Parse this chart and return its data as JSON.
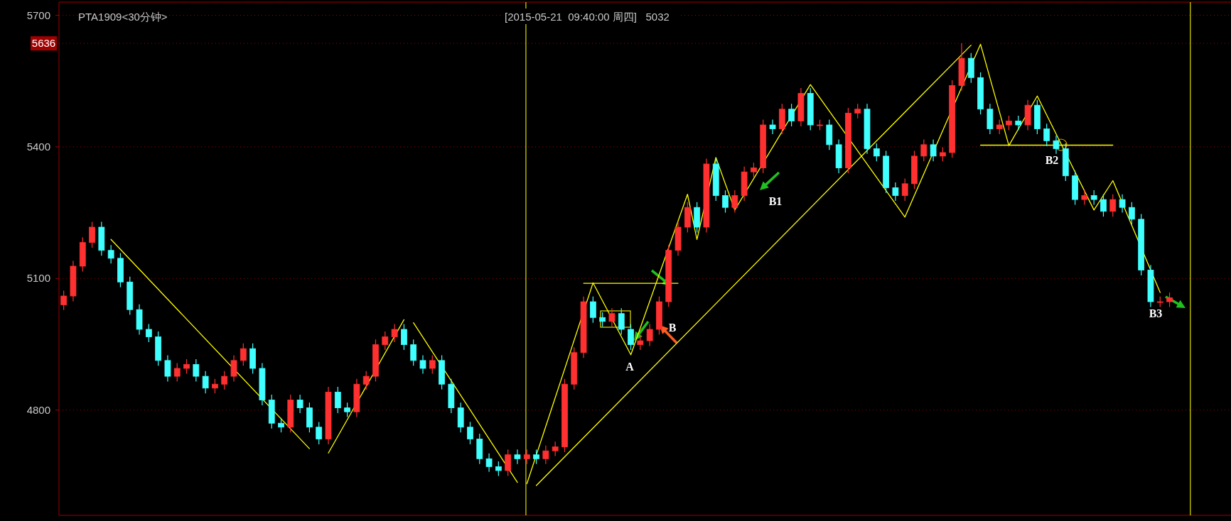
{
  "chart_data": {
    "type": "candlestick",
    "title": "PTA1909<30分钟>",
    "subtitle": "[2015-05-21  09:40:00 周四]   5032",
    "categories": [
      null,
      null,
      null,
      null,
      null,
      null,
      null,
      null,
      null,
      null,
      null,
      null,
      null,
      null,
      null,
      null,
      null,
      null,
      null,
      null,
      null,
      null,
      null,
      null,
      null,
      null,
      null,
      null,
      null,
      null,
      null,
      null,
      null,
      null,
      null,
      null,
      null,
      null,
      null,
      null,
      null,
      null,
      null,
      null,
      null,
      null,
      null,
      null,
      null,
      null,
      null,
      null,
      null,
      null,
      null,
      null,
      null,
      null,
      null,
      null,
      null,
      null,
      null,
      null,
      null,
      null,
      null,
      null,
      null,
      null,
      null,
      null,
      null,
      null,
      null,
      null,
      null,
      null,
      null,
      null,
      null,
      null,
      null,
      null,
      null,
      null,
      null,
      null,
      null,
      null,
      null,
      null,
      null,
      null,
      null,
      null,
      null,
      null,
      null,
      null,
      null,
      null,
      null,
      null,
      null,
      null,
      null,
      null,
      null,
      null,
      null,
      null,
      null,
      null,
      null,
      null,
      null,
      null
    ],
    "ohlc": [
      [
        5040,
        5072,
        5028,
        5060
      ],
      [
        5060,
        5140,
        5048,
        5128
      ],
      [
        5128,
        5194,
        5116,
        5182
      ],
      [
        5182,
        5229,
        5170,
        5217
      ],
      [
        5217,
        5229,
        5152,
        5164
      ],
      [
        5164,
        5176,
        5134,
        5146
      ],
      [
        5146,
        5158,
        5080,
        5092
      ],
      [
        5092,
        5104,
        5017,
        5029
      ],
      [
        5029,
        5041,
        4972,
        4984
      ],
      [
        4984,
        4996,
        4955,
        4967
      ],
      [
        4967,
        4979,
        4901,
        4913
      ],
      [
        4913,
        4925,
        4865,
        4877
      ],
      [
        4877,
        4907,
        4865,
        4895
      ],
      [
        4895,
        4916,
        4883,
        4904
      ],
      [
        4904,
        4916,
        4865,
        4877
      ],
      [
        4877,
        4889,
        4838,
        4850
      ],
      [
        4850,
        4871,
        4838,
        4859
      ],
      [
        4859,
        4889,
        4847,
        4877
      ],
      [
        4877,
        4925,
        4865,
        4913
      ],
      [
        4913,
        4952,
        4901,
        4940
      ],
      [
        4940,
        4952,
        4883,
        4895
      ],
      [
        4895,
        4907,
        4811,
        4823
      ],
      [
        4823,
        4835,
        4758,
        4770
      ],
      [
        4770,
        4782,
        4749,
        4761
      ],
      [
        4761,
        4835,
        4749,
        4823
      ],
      [
        4823,
        4835,
        4793,
        4805
      ],
      [
        4805,
        4817,
        4749,
        4761
      ],
      [
        4761,
        4773,
        4722,
        4734
      ],
      [
        4734,
        4853,
        4722,
        4841
      ],
      [
        4841,
        4853,
        4793,
        4805
      ],
      [
        4805,
        4817,
        4784,
        4796
      ],
      [
        4796,
        4871,
        4784,
        4859
      ],
      [
        4859,
        4889,
        4847,
        4877
      ],
      [
        4877,
        4961,
        4865,
        4949
      ],
      [
        4949,
        4979,
        4937,
        4967
      ],
      [
        4967,
        4996,
        4955,
        4984
      ],
      [
        4984,
        4996,
        4937,
        4949
      ],
      [
        4949,
        4961,
        4901,
        4913
      ],
      [
        4913,
        4925,
        4883,
        4895
      ],
      [
        4895,
        4925,
        4883,
        4913
      ],
      [
        4913,
        4925,
        4847,
        4859
      ],
      [
        4859,
        4871,
        4793,
        4805
      ],
      [
        4805,
        4817,
        4749,
        4761
      ],
      [
        4761,
        4773,
        4722,
        4734
      ],
      [
        4734,
        4746,
        4677,
        4689
      ],
      [
        4689,
        4701,
        4659,
        4671
      ],
      [
        4671,
        4683,
        4650,
        4662
      ],
      [
        4662,
        4710,
        4650,
        4698
      ],
      [
        4698,
        4710,
        4677,
        4689
      ],
      [
        4689,
        4710,
        4677,
        4698
      ],
      [
        4698,
        4710,
        4677,
        4689
      ],
      [
        4689,
        4719,
        4677,
        4707
      ],
      [
        4707,
        4728,
        4695,
        4716
      ],
      [
        4716,
        4871,
        4704,
        4859
      ],
      [
        4859,
        4943,
        4847,
        4931
      ],
      [
        4931,
        5059,
        4919,
        5047
      ],
      [
        5047,
        5059,
        4999,
        5011
      ],
      [
        5011,
        5023,
        4990,
        5002
      ],
      [
        5002,
        5032,
        4990,
        5020
      ],
      [
        5020,
        5032,
        4972,
        4984
      ],
      [
        4984,
        4996,
        4937,
        4949
      ],
      [
        4949,
        4970,
        4937,
        4958
      ],
      [
        4958,
        4996,
        4946,
        4984
      ],
      [
        4984,
        5059,
        4972,
        5047
      ],
      [
        5047,
        5176,
        5035,
        5164
      ],
      [
        5164,
        5229,
        5152,
        5217
      ],
      [
        5217,
        5274,
        5205,
        5262
      ],
      [
        5262,
        5274,
        5205,
        5217
      ],
      [
        5217,
        5373,
        5205,
        5361
      ],
      [
        5361,
        5373,
        5277,
        5289
      ],
      [
        5289,
        5301,
        5250,
        5262
      ],
      [
        5262,
        5301,
        5250,
        5289
      ],
      [
        5289,
        5355,
        5277,
        5343
      ],
      [
        5343,
        5364,
        5331,
        5352
      ],
      [
        5352,
        5462,
        5340,
        5450
      ],
      [
        5450,
        5462,
        5429,
        5441
      ],
      [
        5441,
        5498,
        5429,
        5486
      ],
      [
        5486,
        5498,
        5447,
        5459
      ],
      [
        5459,
        5534,
        5447,
        5522
      ],
      [
        5522,
        5534,
        5438,
        5450
      ],
      [
        5450,
        5462,
        5438,
        5450
      ],
      [
        5450,
        5462,
        5393,
        5405
      ],
      [
        5405,
        5417,
        5340,
        5352
      ],
      [
        5352,
        5489,
        5340,
        5477
      ],
      [
        5477,
        5498,
        5465,
        5486
      ],
      [
        5486,
        5498,
        5384,
        5396
      ],
      [
        5396,
        5408,
        5367,
        5379
      ],
      [
        5379,
        5391,
        5295,
        5307
      ],
      [
        5307,
        5319,
        5277,
        5289
      ],
      [
        5289,
        5328,
        5277,
        5316
      ],
      [
        5316,
        5391,
        5304,
        5379
      ],
      [
        5379,
        5417,
        5367,
        5405
      ],
      [
        5405,
        5417,
        5367,
        5379
      ],
      [
        5379,
        5399,
        5367,
        5387
      ],
      [
        5387,
        5552,
        5375,
        5540
      ],
      [
        5540,
        5636,
        5528,
        5602
      ],
      [
        5602,
        5614,
        5546,
        5558
      ],
      [
        5558,
        5570,
        5474,
        5486
      ],
      [
        5486,
        5498,
        5429,
        5441
      ],
      [
        5441,
        5462,
        5429,
        5450
      ],
      [
        5450,
        5471,
        5438,
        5459
      ],
      [
        5459,
        5471,
        5438,
        5450
      ],
      [
        5450,
        5507,
        5438,
        5495
      ],
      [
        5495,
        5507,
        5429,
        5441
      ],
      [
        5441,
        5453,
        5402,
        5414
      ],
      [
        5414,
        5426,
        5384,
        5396
      ],
      [
        5396,
        5408,
        5322,
        5334
      ],
      [
        5334,
        5346,
        5268,
        5280
      ],
      [
        5280,
        5301,
        5268,
        5289
      ],
      [
        5289,
        5301,
        5268,
        5280
      ],
      [
        5280,
        5292,
        5241,
        5253
      ],
      [
        5253,
        5292,
        5241,
        5280
      ],
      [
        5280,
        5292,
        5250,
        5262
      ],
      [
        5262,
        5274,
        5223,
        5235
      ],
      [
        5235,
        5247,
        5107,
        5119
      ],
      [
        5119,
        5131,
        5035,
        5047
      ],
      [
        5047,
        5059,
        5035,
        5047
      ],
      [
        5047,
        5068,
        5035,
        5056
      ]
    ],
    "series": [
      {
        "type": "line",
        "color": "#ffff00",
        "values": [
          null,
          null,
          null,
          null,
          null,
          5189,
          null,
          null,
          null,
          null,
          null,
          null,
          null,
          null,
          null,
          null,
          null,
          null,
          null,
          null,
          null,
          null,
          null,
          null,
          null,
          null,
          4712,
          null,
          null,
          null,
          null,
          null,
          null,
          null,
          null,
          null,
          null,
          null,
          null,
          null,
          null,
          null,
          null,
          null,
          null,
          null,
          null,
          null,
          null,
          null,
          null,
          null,
          null,
          null,
          null,
          null,
          null,
          null,
          null,
          null,
          null,
          null,
          null,
          null,
          null,
          null,
          null,
          null,
          null,
          null,
          null,
          null,
          null,
          null,
          null,
          null,
          null,
          null,
          null,
          null,
          null,
          null,
          null,
          null,
          null,
          null,
          null,
          null,
          null,
          null,
          null,
          null,
          null,
          null,
          null,
          null,
          null,
          null,
          null,
          null,
          null,
          null,
          null,
          null,
          null,
          null,
          null,
          null,
          null,
          null,
          null,
          null,
          null,
          null,
          null,
          null,
          null,
          null
        ]
      },
      {
        "type": "line",
        "color": "#ffff00",
        "values": [
          null,
          null,
          null,
          null,
          null,
          null,
          null,
          null,
          null,
          null,
          null,
          null,
          null,
          null,
          null,
          null,
          null,
          null,
          null,
          null,
          null,
          null,
          null,
          null,
          null,
          null,
          null,
          null,
          4702,
          null,
          null,
          null,
          null,
          null,
          null,
          null,
          5006,
          null,
          null,
          null,
          null,
          null,
          null,
          null,
          null,
          null,
          null,
          null,
          null,
          null,
          null,
          null,
          null,
          null,
          null,
          null,
          null,
          null,
          null,
          null,
          null,
          null,
          null,
          null,
          null,
          null,
          null,
          null,
          null,
          null,
          null,
          null,
          null,
          null,
          null,
          null,
          null,
          null,
          null,
          null,
          null,
          null,
          null,
          null,
          null,
          null,
          null,
          null,
          null,
          null,
          null,
          null,
          null,
          null,
          null,
          null,
          null,
          null,
          null,
          null,
          null,
          null,
          null,
          null,
          null,
          null,
          null,
          null,
          null,
          null,
          null,
          null,
          null,
          null,
          null,
          null,
          null,
          null
        ]
      },
      {
        "type": "line",
        "color": "#ffff00",
        "values": [
          null,
          null,
          null,
          null,
          null,
          null,
          null,
          null,
          null,
          null,
          null,
          null,
          null,
          null,
          null,
          null,
          null,
          null,
          null,
          null,
          null,
          null,
          null,
          null,
          null,
          null,
          null,
          null,
          null,
          null,
          null,
          null,
          null,
          null,
          null,
          null,
          null,
          4999,
          null,
          null,
          null,
          null,
          null,
          null,
          null,
          null,
          null,
          null,
          4635,
          null,
          null,
          null,
          null,
          null,
          null,
          null,
          null,
          null,
          null,
          null,
          null,
          null,
          null,
          null,
          null,
          null,
          null,
          null,
          null,
          null,
          null,
          null,
          null,
          null,
          null,
          null,
          null,
          null,
          null,
          null,
          null,
          null,
          null,
          null,
          null,
          null,
          null,
          null,
          null,
          null,
          null,
          null,
          null,
          null,
          null,
          null,
          null,
          null,
          null,
          null,
          null,
          null,
          null,
          null,
          null,
          null,
          null,
          null,
          null,
          null,
          null,
          null,
          null,
          null,
          null,
          null,
          null,
          null
        ]
      },
      {
        "type": "line",
        "color": "#ffff00",
        "values": [
          null,
          null,
          null,
          null,
          null,
          null,
          null,
          null,
          null,
          null,
          null,
          null,
          null,
          null,
          null,
          null,
          null,
          null,
          null,
          null,
          null,
          null,
          null,
          null,
          null,
          null,
          null,
          null,
          null,
          null,
          null,
          null,
          null,
          null,
          null,
          null,
          null,
          null,
          null,
          null,
          null,
          null,
          null,
          null,
          null,
          null,
          null,
          null,
          null,
          4632,
          null,
          null,
          null,
          null,
          null,
          null,
          5090,
          null,
          null,
          null,
          4926,
          null,
          null,
          null,
          null,
          null,
          5292,
          5189,
          null,
          5376,
          null,
          5256,
          null,
          null,
          null,
          null,
          null,
          null,
          null,
          5542,
          null,
          null,
          null,
          null,
          null,
          null,
          null,
          null,
          null,
          5240,
          null,
          null,
          null,
          null,
          null,
          null,
          null,
          5634,
          null,
          null,
          5403,
          null,
          null,
          5516,
          null,
          null,
          null,
          null,
          null,
          5256,
          null,
          5323,
          null,
          null,
          null,
          null,
          5068,
          null
        ]
      },
      {
        "type": "line",
        "color": "#ffff00",
        "values": [
          null,
          null,
          null,
          null,
          null,
          null,
          null,
          null,
          null,
          null,
          null,
          null,
          null,
          null,
          null,
          null,
          null,
          null,
          null,
          null,
          null,
          null,
          null,
          null,
          null,
          null,
          null,
          null,
          null,
          null,
          null,
          null,
          null,
          null,
          null,
          null,
          null,
          null,
          null,
          null,
          null,
          null,
          null,
          null,
          null,
          null,
          null,
          null,
          null,
          null,
          4628,
          null,
          null,
          null,
          null,
          null,
          null,
          null,
          null,
          null,
          null,
          null,
          null,
          null,
          null,
          null,
          null,
          null,
          null,
          null,
          null,
          null,
          null,
          null,
          null,
          null,
          null,
          null,
          null,
          null,
          null,
          null,
          null,
          null,
          null,
          null,
          null,
          null,
          null,
          null,
          null,
          null,
          null,
          null,
          null,
          null,
          5632,
          null,
          null,
          null,
          null,
          null,
          null,
          null,
          null,
          null,
          null,
          null,
          null,
          null,
          null,
          null,
          null,
          null,
          null,
          null,
          null,
          null
        ]
      },
      {
        "type": "line",
        "color": "#ffff00",
        "values": [
          null,
          null,
          null,
          null,
          null,
          null,
          null,
          null,
          null,
          null,
          null,
          null,
          null,
          null,
          null,
          null,
          null,
          null,
          null,
          null,
          null,
          null,
          null,
          null,
          null,
          null,
          null,
          null,
          null,
          null,
          null,
          null,
          null,
          null,
          null,
          null,
          null,
          null,
          null,
          null,
          null,
          null,
          null,
          null,
          null,
          null,
          null,
          null,
          null,
          null,
          null,
          null,
          null,
          null,
          null,
          5089,
          null,
          null,
          null,
          null,
          null,
          null,
          null,
          null,
          null,
          5089,
          null,
          null,
          null,
          null,
          null,
          null,
          null,
          null,
          null,
          null,
          null,
          null,
          null,
          null,
          null,
          null,
          null,
          null,
          null,
          null,
          null,
          null,
          null,
          null,
          null,
          null,
          null,
          null,
          null,
          null,
          null,
          null,
          null,
          null,
          null,
          null,
          null,
          null,
          null,
          null,
          null,
          null,
          null,
          null,
          null,
          null,
          null,
          null,
          null,
          null,
          null,
          null
        ]
      },
      {
        "type": "line",
        "color": "#ffff00",
        "values": [
          null,
          null,
          null,
          null,
          null,
          null,
          null,
          null,
          null,
          null,
          null,
          null,
          null,
          null,
          null,
          null,
          null,
          null,
          null,
          null,
          null,
          null,
          null,
          null,
          null,
          null,
          null,
          null,
          null,
          null,
          null,
          null,
          null,
          null,
          null,
          null,
          null,
          null,
          null,
          null,
          null,
          null,
          null,
          null,
          null,
          null,
          null,
          null,
          null,
          null,
          null,
          null,
          null,
          null,
          null,
          null,
          null,
          null,
          null,
          null,
          null,
          null,
          null,
          null,
          null,
          null,
          null,
          null,
          null,
          null,
          null,
          null,
          null,
          null,
          null,
          null,
          null,
          null,
          null,
          null,
          null,
          null,
          null,
          null,
          null,
          null,
          null,
          null,
          null,
          null,
          null,
          null,
          null,
          null,
          null,
          null,
          null,
          5404,
          null,
          null,
          null,
          null,
          null,
          null,
          null,
          null,
          null,
          null,
          null,
          null,
          null,
          5404,
          null,
          null,
          null,
          null,
          null,
          null
        ]
      }
    ],
    "ylim": [
      4560,
      5730
    ],
    "yticks": [
      4800,
      5100,
      5400,
      5700
    ],
    "grid": "y",
    "ref_lines": [
      {
        "axis": "y",
        "value": 5636,
        "label": "5636",
        "color": "#a00000"
      }
    ],
    "annotations": [
      "A",
      "B",
      "B1",
      "B2",
      "B3"
    ]
  }
}
